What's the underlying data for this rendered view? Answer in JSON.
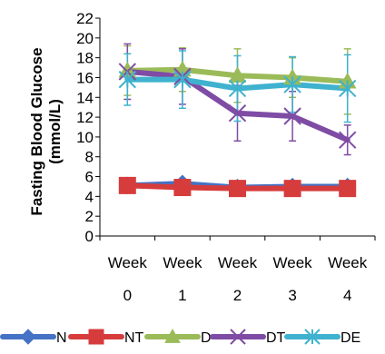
{
  "chart_data": {
    "type": "line",
    "ylabel_line1": "Fasting Blood Glucose",
    "ylabel_line2": "(mmol/L)",
    "categories": [
      {
        "top": "Week",
        "bottom": "0"
      },
      {
        "top": "Week",
        "bottom": "1"
      },
      {
        "top": "Week",
        "bottom": "2"
      },
      {
        "top": "Week",
        "bottom": "3"
      },
      {
        "top": "Week",
        "bottom": "4"
      }
    ],
    "ylim": [
      0,
      22
    ],
    "yticks": [
      0,
      2,
      4,
      6,
      8,
      10,
      12,
      14,
      16,
      18,
      20,
      22
    ],
    "grid": false,
    "legend_position": "bottom",
    "series": [
      {
        "name": "N",
        "color": "#4472c4",
        "marker": "diamond",
        "values": [
          5.1,
          5.3,
          4.9,
          5.0,
          5.0
        ],
        "errors": [
          0.3,
          0.3,
          0.3,
          0.3,
          0.3
        ]
      },
      {
        "name": "NT",
        "color": "#d63c3c",
        "marker": "square",
        "values": [
          5.1,
          4.9,
          4.8,
          4.8,
          4.8
        ],
        "errors": [
          0.3,
          0.3,
          0.3,
          0.3,
          0.3
        ]
      },
      {
        "name": "D",
        "color": "#9bbb59",
        "marker": "triangle",
        "values": [
          16.7,
          16.8,
          16.2,
          16.0,
          15.6
        ],
        "errors": [
          2.5,
          2.2,
          2.7,
          2.0,
          3.3
        ]
      },
      {
        "name": "DT",
        "color": "#7f4ca5",
        "marker": "x",
        "values": [
          16.6,
          16.1,
          12.4,
          12.1,
          9.7
        ],
        "errors": [
          2.8,
          2.8,
          2.8,
          2.5,
          1.5
        ]
      },
      {
        "name": "DE",
        "color": "#3fb2cf",
        "marker": "asterisk",
        "values": [
          15.8,
          15.8,
          14.9,
          15.3,
          14.9
        ],
        "errors": [
          2.6,
          2.9,
          3.3,
          2.8,
          3.4
        ]
      }
    ]
  }
}
